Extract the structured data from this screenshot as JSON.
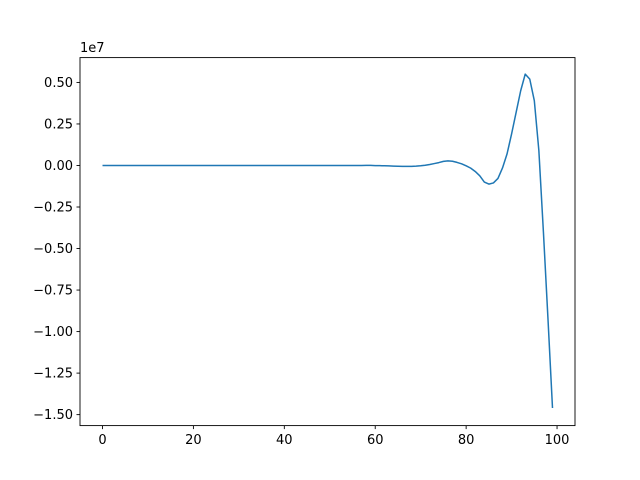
{
  "figure": {
    "background": "#ffffff"
  },
  "chart_data": {
    "type": "line",
    "title": "",
    "xlabel": "",
    "ylabel": "",
    "offset_text": "1e7",
    "grid": false,
    "legend": null,
    "xlim": [
      -4.95,
      103.95
    ],
    "ylim": [
      -15660000,
      6495000
    ],
    "x_ticks": {
      "values": [
        0,
        20,
        40,
        60,
        80,
        100
      ],
      "labels": [
        "0",
        "20",
        "40",
        "60",
        "80",
        "100"
      ]
    },
    "y_ticks": {
      "values": [
        5000000,
        2500000,
        0,
        -2500000,
        -5000000,
        -7500000,
        -10000000,
        -12500000,
        -15000000
      ],
      "labels": [
        "0.50",
        "0.25",
        "0.00",
        "−0.25",
        "−0.50",
        "−0.75",
        "−1.00",
        "−1.25",
        "−1.50"
      ]
    },
    "line_color": "#1f77b4",
    "line_width": 1.5,
    "spine_color": "#000000",
    "series": [
      {
        "name": "series-0",
        "x": [
          0,
          1,
          2,
          3,
          4,
          5,
          6,
          7,
          8,
          9,
          10,
          11,
          12,
          13,
          14,
          15,
          16,
          17,
          18,
          19,
          20,
          21,
          22,
          23,
          24,
          25,
          26,
          27,
          28,
          29,
          30,
          31,
          32,
          33,
          34,
          35,
          36,
          37,
          38,
          39,
          40,
          41,
          42,
          43,
          44,
          45,
          46,
          47,
          48,
          49,
          50,
          51,
          52,
          53,
          54,
          55,
          56,
          57,
          58,
          59,
          60,
          61,
          62,
          63,
          64,
          65,
          66,
          67,
          68,
          69,
          70,
          71,
          72,
          73,
          74,
          75,
          76,
          77,
          78,
          79,
          80,
          81,
          82,
          83,
          84,
          85,
          86,
          87,
          88,
          89,
          90,
          91,
          92,
          93,
          94,
          95,
          96,
          97,
          98,
          99
        ],
        "y": [
          0,
          0,
          0,
          0,
          0,
          0,
          0,
          0,
          0,
          0,
          0,
          0,
          0,
          0,
          0,
          0,
          0,
          0,
          0,
          0,
          0,
          0,
          0,
          0,
          0,
          0,
          0,
          0,
          0,
          0,
          0,
          0,
          0,
          0,
          0,
          0,
          0,
          0,
          0,
          0,
          0,
          0,
          0,
          0,
          0,
          0,
          0,
          0,
          0,
          0,
          0,
          0,
          0,
          0,
          0,
          0,
          0,
          0,
          10000,
          5000,
          -5000,
          -12000,
          -19000,
          -27000,
          -36000,
          -45000,
          -52000,
          -56000,
          -52000,
          -40000,
          -17000,
          16000,
          60000,
          115000,
          175000,
          245000,
          275000,
          255000,
          185000,
          100000,
          -20000,
          -160000,
          -360000,
          -620000,
          -1000000,
          -1120000,
          -1050000,
          -780000,
          -150000,
          700000,
          1900000,
          3200000,
          4500000,
          5500000,
          5200000,
          3900000,
          900000,
          -4000000,
          -9200000,
          -14600000
        ]
      }
    ]
  }
}
